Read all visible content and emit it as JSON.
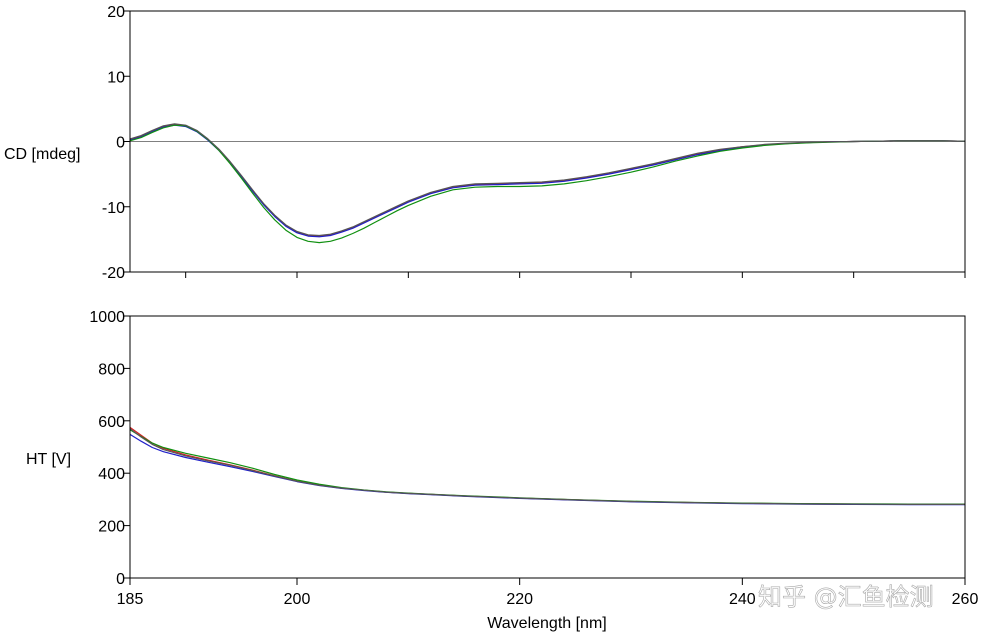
{
  "watermark": "知乎 @汇鱼检测",
  "colors": {
    "frame": "#000000",
    "zero_line": "#808080",
    "series": [
      "#d22020",
      "#2020c8",
      "#109010",
      "#555555"
    ]
  },
  "chart_data": [
    {
      "type": "line",
      "ylabel": "CD [mdeg]",
      "xlabel": "",
      "xlim": [
        185,
        260
      ],
      "ylim": [
        -20,
        20
      ],
      "yticks": [
        "20",
        "10",
        "0",
        "-10",
        "-20"
      ],
      "yticks_values": [
        20,
        10,
        0,
        -10,
        -20
      ],
      "x_ticks_minor": [
        190,
        200,
        210,
        220,
        230,
        240,
        250,
        260
      ],
      "zero_line": true,
      "grid": false,
      "series": [
        {
          "x": [
            185,
            186,
            187,
            188,
            189,
            190,
            191,
            192,
            193,
            194,
            195,
            196,
            197,
            198,
            199,
            200,
            201,
            202,
            203,
            204,
            205,
            206,
            207,
            208,
            209,
            210,
            212,
            214,
            216,
            218,
            220,
            222,
            224,
            226,
            228,
            230,
            232,
            234,
            236,
            238,
            240,
            242,
            244,
            246,
            248,
            250,
            252,
            254,
            256,
            258,
            260
          ],
          "y": [
            0.3,
            0.8,
            1.6,
            2.3,
            2.6,
            2.4,
            1.6,
            0.3,
            -1.3,
            -3.2,
            -5.3,
            -7.5,
            -9.6,
            -11.4,
            -12.9,
            -13.9,
            -14.4,
            -14.5,
            -14.3,
            -13.8,
            -13.2,
            -12.4,
            -11.6,
            -10.8,
            -10.0,
            -9.2,
            -7.9,
            -7.0,
            -6.6,
            -6.5,
            -6.4,
            -6.3,
            -6.0,
            -5.5,
            -4.9,
            -4.2,
            -3.5,
            -2.7,
            -1.9,
            -1.3,
            -0.8,
            -0.5,
            -0.3,
            -0.15,
            -0.05,
            0.0,
            0.05,
            0.1,
            0.1,
            0.1,
            0.05
          ]
        },
        {
          "x": [
            185,
            186,
            187,
            188,
            189,
            190,
            191,
            192,
            193,
            194,
            195,
            196,
            197,
            198,
            199,
            200,
            201,
            202,
            203,
            204,
            205,
            206,
            207,
            208,
            209,
            210,
            212,
            214,
            216,
            218,
            220,
            222,
            224,
            226,
            228,
            230,
            232,
            234,
            236,
            238,
            240,
            242,
            244,
            246,
            248,
            250,
            252,
            254,
            256,
            258,
            260
          ],
          "y": [
            0.2,
            0.7,
            1.5,
            2.2,
            2.5,
            2.3,
            1.5,
            0.2,
            -1.4,
            -3.3,
            -5.4,
            -7.6,
            -9.7,
            -11.5,
            -13.0,
            -14.0,
            -14.5,
            -14.6,
            -14.4,
            -13.9,
            -13.3,
            -12.5,
            -11.7,
            -10.9,
            -10.1,
            -9.3,
            -8.0,
            -7.1,
            -6.7,
            -6.6,
            -6.5,
            -6.4,
            -6.1,
            -5.6,
            -5.0,
            -4.3,
            -3.6,
            -2.8,
            -2.0,
            -1.4,
            -0.9,
            -0.5,
            -0.3,
            -0.15,
            -0.05,
            0.0,
            0.05,
            0.1,
            0.1,
            0.1,
            0.05
          ]
        },
        {
          "x": [
            185,
            186,
            187,
            188,
            189,
            190,
            191,
            192,
            193,
            194,
            195,
            196,
            197,
            198,
            199,
            200,
            201,
            202,
            203,
            204,
            205,
            206,
            207,
            208,
            209,
            210,
            212,
            214,
            216,
            218,
            220,
            222,
            224,
            226,
            228,
            230,
            232,
            234,
            236,
            238,
            240,
            242,
            244,
            246,
            248,
            250,
            252,
            254,
            256,
            258,
            260
          ],
          "y": [
            0.1,
            0.6,
            1.4,
            2.1,
            2.5,
            2.4,
            1.6,
            0.3,
            -1.4,
            -3.4,
            -5.6,
            -7.9,
            -10.1,
            -12.0,
            -13.6,
            -14.7,
            -15.3,
            -15.5,
            -15.3,
            -14.8,
            -14.1,
            -13.3,
            -12.4,
            -11.5,
            -10.6,
            -9.8,
            -8.4,
            -7.4,
            -7.0,
            -6.9,
            -6.9,
            -6.8,
            -6.5,
            -6.0,
            -5.4,
            -4.7,
            -3.9,
            -3.0,
            -2.2,
            -1.5,
            -1.0,
            -0.6,
            -0.35,
            -0.2,
            -0.1,
            0.0,
            0.05,
            0.1,
            0.1,
            0.1,
            0.05
          ]
        },
        {
          "x": [
            185,
            186,
            187,
            188,
            189,
            190,
            191,
            192,
            193,
            194,
            195,
            196,
            197,
            198,
            199,
            200,
            201,
            202,
            203,
            204,
            205,
            206,
            207,
            208,
            209,
            210,
            212,
            214,
            216,
            218,
            220,
            222,
            224,
            226,
            228,
            230,
            232,
            234,
            236,
            238,
            240,
            242,
            244,
            246,
            248,
            250,
            252,
            254,
            256,
            258,
            260
          ],
          "y": [
            0.4,
            0.9,
            1.7,
            2.4,
            2.7,
            2.5,
            1.7,
            0.4,
            -1.2,
            -3.1,
            -5.2,
            -7.4,
            -9.5,
            -11.3,
            -12.8,
            -13.8,
            -14.3,
            -14.4,
            -14.2,
            -13.7,
            -13.1,
            -12.3,
            -11.5,
            -10.7,
            -9.9,
            -9.1,
            -7.8,
            -6.9,
            -6.5,
            -6.4,
            -6.3,
            -6.2,
            -5.9,
            -5.4,
            -4.8,
            -4.1,
            -3.4,
            -2.6,
            -1.8,
            -1.2,
            -0.8,
            -0.45,
            -0.25,
            -0.1,
            -0.05,
            0.0,
            0.05,
            0.1,
            0.1,
            0.1,
            0.05
          ]
        }
      ]
    },
    {
      "type": "line",
      "ylabel": "HT [V]",
      "xlabel": "Wavelength [nm]",
      "xlim": [
        185,
        260
      ],
      "ylim": [
        0,
        1000
      ],
      "yticks": [
        "1000",
        "800",
        "600",
        "400",
        "200",
        "0"
      ],
      "yticks_values": [
        1000,
        800,
        600,
        400,
        200,
        0
      ],
      "xticks": [
        "185",
        "200",
        "220",
        "240",
        "260"
      ],
      "xticks_values": [
        185,
        200,
        220,
        240,
        260
      ],
      "grid": false,
      "series": [
        {
          "x": [
            185,
            186,
            187,
            188,
            190,
            192,
            194,
            196,
            198,
            200,
            202,
            204,
            206,
            208,
            210,
            212,
            215,
            220,
            225,
            230,
            235,
            240,
            245,
            250,
            255,
            260
          ],
          "y": [
            575,
            545,
            515,
            495,
            470,
            450,
            432,
            412,
            390,
            370,
            355,
            343,
            335,
            328,
            323,
            319,
            313,
            305,
            298,
            292,
            288,
            285,
            283,
            282,
            281,
            281
          ]
        },
        {
          "x": [
            185,
            186,
            187,
            188,
            190,
            192,
            194,
            196,
            198,
            200,
            202,
            204,
            206,
            208,
            210,
            212,
            215,
            220,
            225,
            230,
            235,
            240,
            245,
            250,
            255,
            260
          ],
          "y": [
            548,
            522,
            498,
            482,
            460,
            442,
            425,
            407,
            387,
            368,
            353,
            342,
            334,
            327,
            322,
            318,
            312,
            304,
            297,
            291,
            287,
            284,
            282,
            281,
            280,
            280
          ]
        },
        {
          "x": [
            185,
            186,
            187,
            188,
            190,
            192,
            194,
            196,
            198,
            200,
            202,
            204,
            206,
            208,
            210,
            212,
            215,
            220,
            225,
            230,
            235,
            240,
            245,
            250,
            255,
            260
          ],
          "y": [
            566,
            540,
            515,
            498,
            476,
            458,
            440,
            419,
            395,
            374,
            358,
            345,
            336,
            329,
            324,
            320,
            314,
            306,
            299,
            293,
            289,
            286,
            284,
            283,
            282,
            282
          ]
        },
        {
          "x": [
            185,
            186,
            187,
            188,
            190,
            192,
            194,
            196,
            198,
            200,
            202,
            204,
            206,
            208,
            210,
            212,
            215,
            220,
            225,
            230,
            235,
            240,
            245,
            250,
            255,
            260
          ],
          "y": [
            570,
            538,
            510,
            490,
            466,
            447,
            430,
            410,
            389,
            369,
            354,
            343,
            335,
            328,
            323,
            319,
            313,
            305,
            298,
            292,
            288,
            285,
            283,
            282,
            281,
            281
          ]
        }
      ]
    }
  ]
}
